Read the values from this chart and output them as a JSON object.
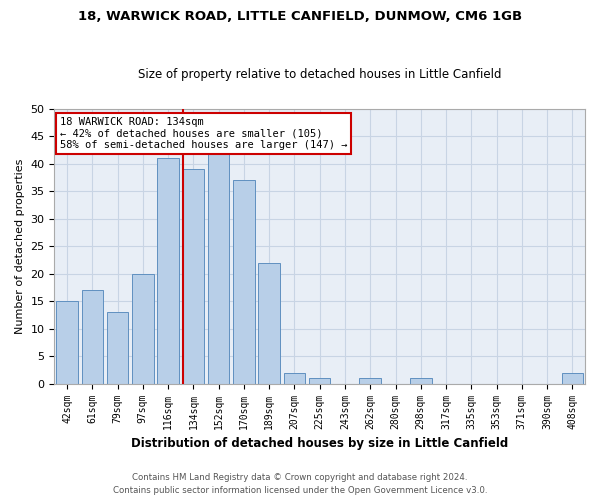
{
  "title1": "18, WARWICK ROAD, LITTLE CANFIELD, DUNMOW, CM6 1GB",
  "title2": "Size of property relative to detached houses in Little Canfield",
  "xlabel": "Distribution of detached houses by size in Little Canfield",
  "ylabel": "Number of detached properties",
  "bar_labels": [
    "42sqm",
    "61sqm",
    "79sqm",
    "97sqm",
    "116sqm",
    "134sqm",
    "152sqm",
    "170sqm",
    "189sqm",
    "207sqm",
    "225sqm",
    "243sqm",
    "262sqm",
    "280sqm",
    "298sqm",
    "317sqm",
    "335sqm",
    "353sqm",
    "371sqm",
    "390sqm",
    "408sqm"
  ],
  "bar_values": [
    15,
    17,
    13,
    20,
    41,
    39,
    42,
    37,
    22,
    2,
    1,
    0,
    1,
    0,
    1,
    0,
    0,
    0,
    0,
    0,
    2
  ],
  "bar_color": "#b8cfe8",
  "bar_edge_color": "#6090c0",
  "grid_color": "#c8d4e4",
  "bg_color": "#e8eef6",
  "red_line_index": 5,
  "annotation_title": "18 WARWICK ROAD: 134sqm",
  "annotation_line1": "← 42% of detached houses are smaller (105)",
  "annotation_line2": "58% of semi-detached houses are larger (147) →",
  "annotation_box_color": "#ffffff",
  "annotation_border_color": "#cc0000",
  "footer1": "Contains HM Land Registry data © Crown copyright and database right 2024.",
  "footer2": "Contains public sector information licensed under the Open Government Licence v3.0.",
  "ylim": [
    0,
    50
  ],
  "yticks": [
    0,
    5,
    10,
    15,
    20,
    25,
    30,
    35,
    40,
    45,
    50
  ]
}
